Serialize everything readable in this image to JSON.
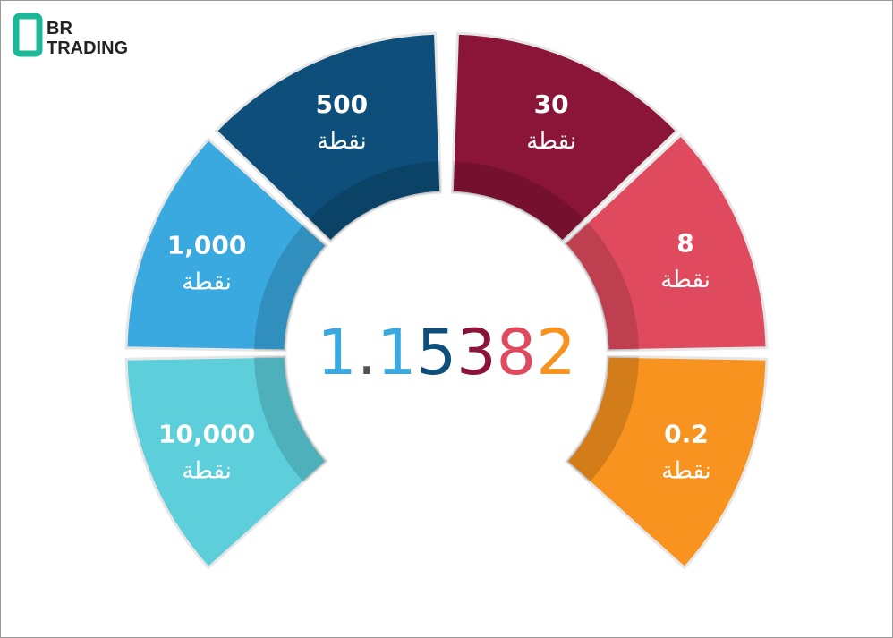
{
  "logo": {
    "line1": "BR",
    "line2": "TRADING",
    "color": "#1bb99a"
  },
  "segments": [
    {
      "value": "10,000",
      "unit": "نقطة",
      "color": "#5ccfdb"
    },
    {
      "value": "1,000",
      "unit": "نقطة",
      "color": "#3aa9e0"
    },
    {
      "value": "500",
      "unit": "نقطة",
      "color": "#0d4f7a"
    },
    {
      "value": "30",
      "unit": "نقطة",
      "color": "#8a1538"
    },
    {
      "value": "8",
      "unit": "نقطة",
      "color": "#e04a5e"
    },
    {
      "value": "0.2",
      "unit": "نقطة",
      "color": "#f7931e"
    }
  ],
  "center": {
    "digits": [
      {
        "text": "1",
        "color": "#3aa9e0"
      },
      {
        "text": ".",
        "color": "#555555"
      },
      {
        "text": "1",
        "color": "#3aa9e0"
      },
      {
        "text": "5",
        "color": "#0d4f7a"
      },
      {
        "text": "3",
        "color": "#8a1538"
      },
      {
        "text": "8",
        "color": "#e04a5e"
      },
      {
        "text": "2",
        "color": "#f7931e"
      }
    ]
  }
}
